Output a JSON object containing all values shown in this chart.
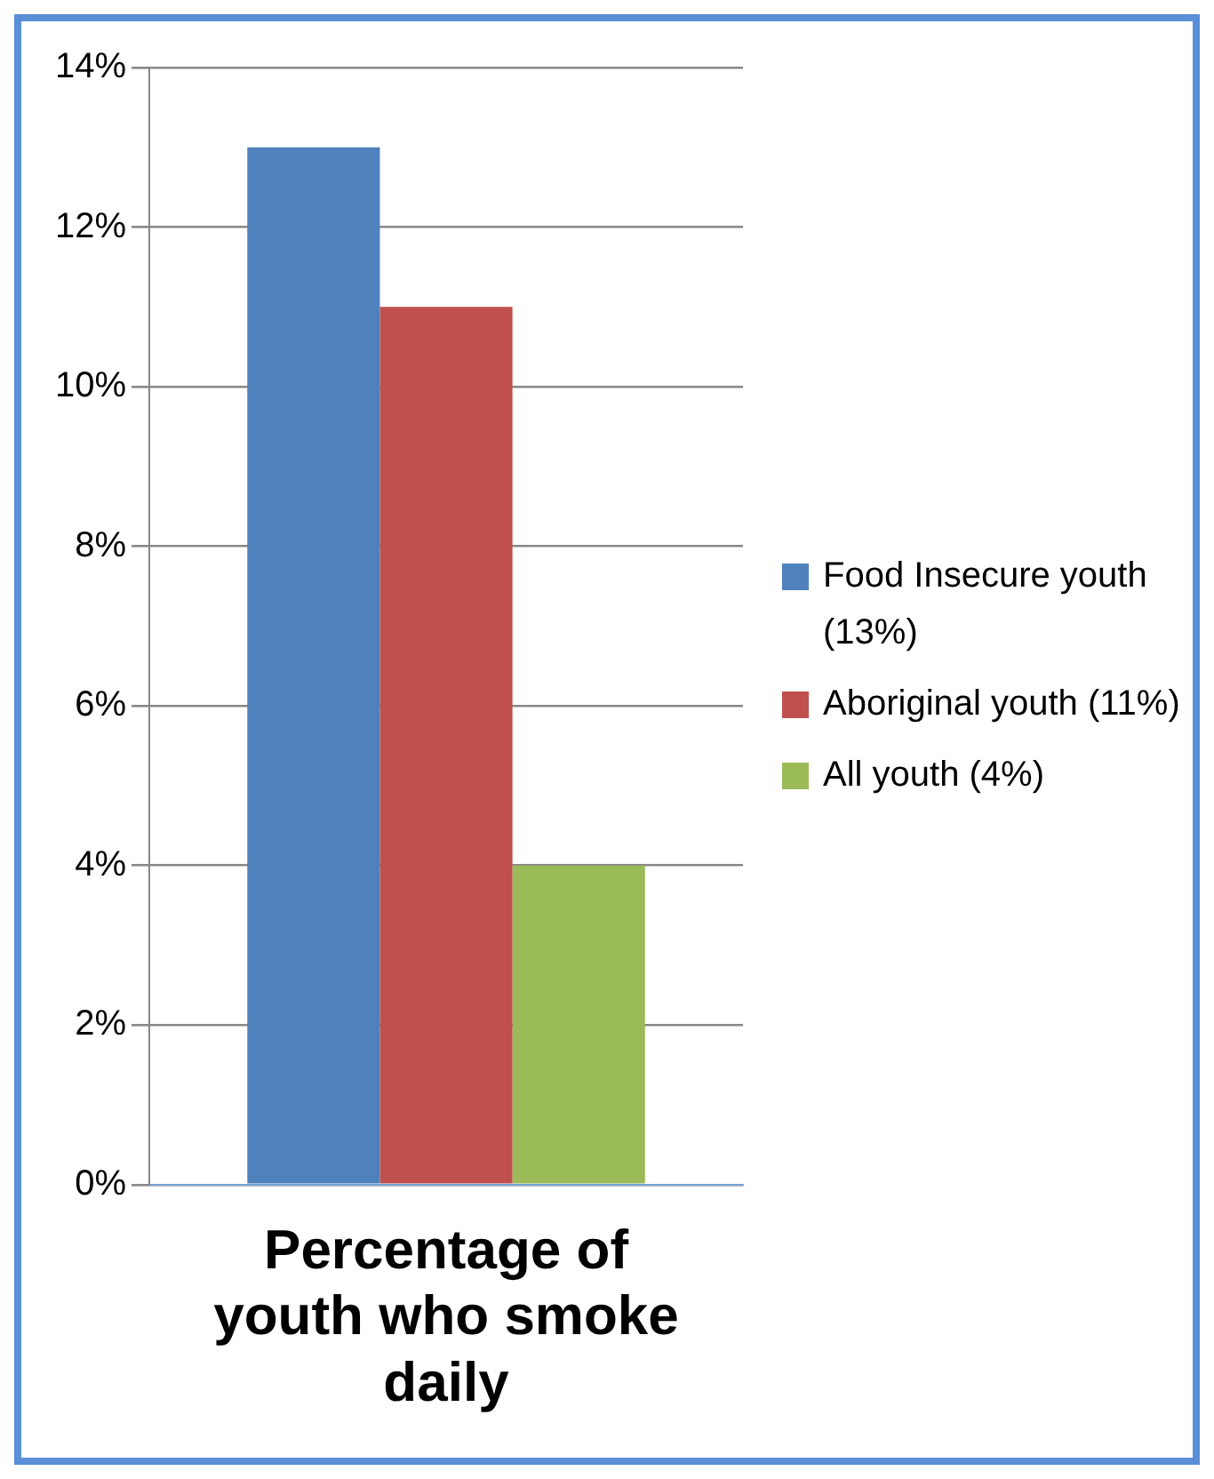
{
  "chart_data": {
    "type": "bar",
    "categories": [
      "Percentage of youth who smoke daily"
    ],
    "series": [
      {
        "name": "Food Insecure youth (13%)",
        "color": "#4f81bd",
        "values": [
          13
        ]
      },
      {
        "name": "Aboriginal youth (11%)",
        "color": "#c0504d",
        "values": [
          11
        ]
      },
      {
        "name": "All youth (4%)",
        "color": "#9bbb59",
        "values": [
          4
        ]
      }
    ],
    "ylim": [
      0,
      14
    ],
    "yticks": [
      {
        "value": 0,
        "label": "0%"
      },
      {
        "value": 2,
        "label": "2%"
      },
      {
        "value": 4,
        "label": "4%"
      },
      {
        "value": 6,
        "label": "6%"
      },
      {
        "value": 8,
        "label": "8%"
      },
      {
        "value": 10,
        "label": "10%"
      },
      {
        "value": 12,
        "label": "12%"
      },
      {
        "value": 14,
        "label": "14%"
      }
    ],
    "grid": "y",
    "legend": "right"
  }
}
